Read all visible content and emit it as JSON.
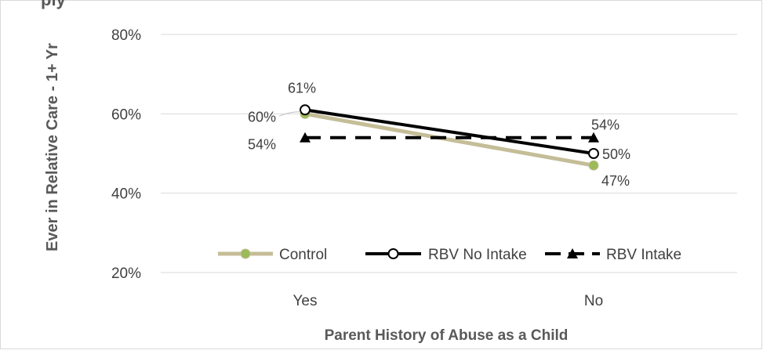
{
  "chart_data": {
    "type": "line",
    "title": "",
    "title_fragment": "ply",
    "categories": [
      "Yes",
      "No"
    ],
    "xlabel": "Parent History of Abuse as a Child",
    "ylabel": "Ever in Relative Care - 1+ Yr",
    "ylim": [
      0.2,
      0.8
    ],
    "yticks": [
      0.2,
      0.4,
      0.6,
      0.8
    ],
    "ytick_labels": [
      "20%",
      "40%",
      "60%",
      "80%"
    ],
    "grid": true,
    "legend_position": "bottom-inside",
    "series": [
      {
        "name": "Control",
        "values": [
          0.6,
          0.47
        ],
        "value_labels": [
          "60%",
          "47%"
        ],
        "color": "#C4BD97",
        "line_style": "solid",
        "marker": "circle-filled",
        "marker_color": "#9BBB59"
      },
      {
        "name": "RBV No Intake",
        "values": [
          0.61,
          0.5
        ],
        "value_labels": [
          "61%",
          "50%"
        ],
        "color": "#000000",
        "line_style": "solid",
        "marker": "circle-open"
      },
      {
        "name": "RBV Intake",
        "values": [
          0.54,
          0.54
        ],
        "value_labels": [
          "54%",
          "54%"
        ],
        "color": "#000000",
        "line_style": "dashed",
        "marker": "triangle"
      }
    ]
  }
}
